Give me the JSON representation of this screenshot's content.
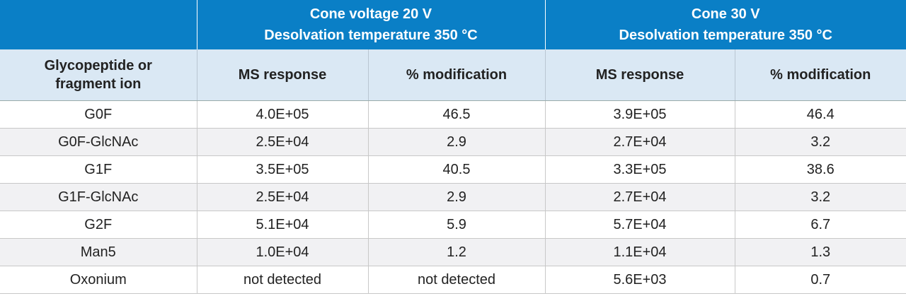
{
  "table": {
    "groups": [
      {
        "lines": [
          "Cone voltage 20 V",
          "Desolvation temperature 350 °C"
        ]
      },
      {
        "lines": [
          "Cone 30 V",
          "Desolvation temperature 350 °C"
        ]
      }
    ],
    "columns": [
      "Glycopeptide or fragment ion",
      "MS response",
      "% modification",
      "MS response",
      "% modification"
    ],
    "rows": [
      [
        "G0F",
        "4.0E+05",
        46.5,
        "3.9E+05",
        46.4
      ],
      [
        "G0F-GlcNAc",
        "2.5E+04",
        2.9,
        "2.7E+04",
        3.2
      ],
      [
        "G1F",
        "3.5E+05",
        40.5,
        "3.3E+05",
        38.6
      ],
      [
        "G1F-GlcNAc",
        "2.5E+04",
        2.9,
        "2.7E+04",
        3.2
      ],
      [
        "G2F",
        "5.1E+04",
        5.9,
        "5.7E+04",
        6.7
      ],
      [
        "Man5",
        "1.0E+04",
        1.2,
        "1.1E+04",
        1.3
      ],
      [
        "Oxonium",
        "not detected",
        "not detected",
        "5.6E+03",
        0.7
      ]
    ]
  }
}
